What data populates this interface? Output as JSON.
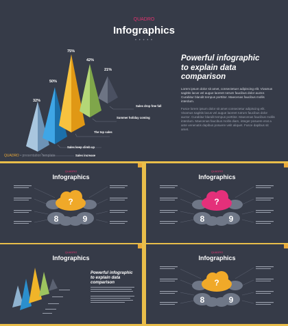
{
  "main": {
    "tag": "QUADRO",
    "title": "Infographics",
    "dots": "• • • • •",
    "headline": [
      "Powerful infographic",
      "to explain data",
      "comparison"
    ],
    "lead_text": "Lorem ipsum dolor sit amet, consectetuer adipiscing elit. Vivamus sagittis lacus vel augue laoreet rutrum faucibus dolor auctor. Curabitur blandit tempus porttitor. Maecenas faucibus mollis interdum.",
    "body_text": "Fusce lorem ipsum dolor sit amet consectetur adipiscing elit. Vivamus sagittis lacus vel augue laoreet rutrum faucibus dolor auctor. Curabitur blandit tempus porttitor. Maecenas faucibus mollis interdum. Maecenas faucibus mollis diam, integer posuere erat a ante venenatis dapibus posuere velit aliquet. Fusce dapibus sit amet.",
    "footer_brand": "QUADRO",
    "footer_text": "• presentation template",
    "pyramids": [
      {
        "value": "32%",
        "label": "Sales increase",
        "color": "#8fb2cf"
      },
      {
        "value": "50%",
        "label": "Sales keep climb up",
        "color": "#2b8fcd"
      },
      {
        "value": "75%",
        "label": "The top sales",
        "color": "#f0b429"
      },
      {
        "value": "42%",
        "label": "Summer holiday coming",
        "color": "#9dc45f"
      },
      {
        "value": "21%",
        "label": "Sales drop free fall",
        "color": "#5b6272"
      }
    ]
  },
  "thumbs": [
    {
      "tag": "QUADRO",
      "title": "Infographics",
      "cloud_accent": "#f0a929",
      "big_numbers": [
        "8",
        "9"
      ],
      "question": "?"
    },
    {
      "tag": "QUADRO",
      "title": "Infographics",
      "cloud_accent": "#e4307a",
      "big_numbers": [
        "8",
        "9"
      ],
      "question": "?"
    },
    {
      "tag": "QUADRO",
      "title": "Infographics",
      "headline": [
        "Powerful infographic",
        "to explain data",
        "comparison"
      ]
    },
    {
      "tag": "QUADRO",
      "title": "Infographics",
      "cloud_accent": "#f0a929",
      "big_numbers": [
        "8",
        "9"
      ],
      "question": "?"
    }
  ]
}
